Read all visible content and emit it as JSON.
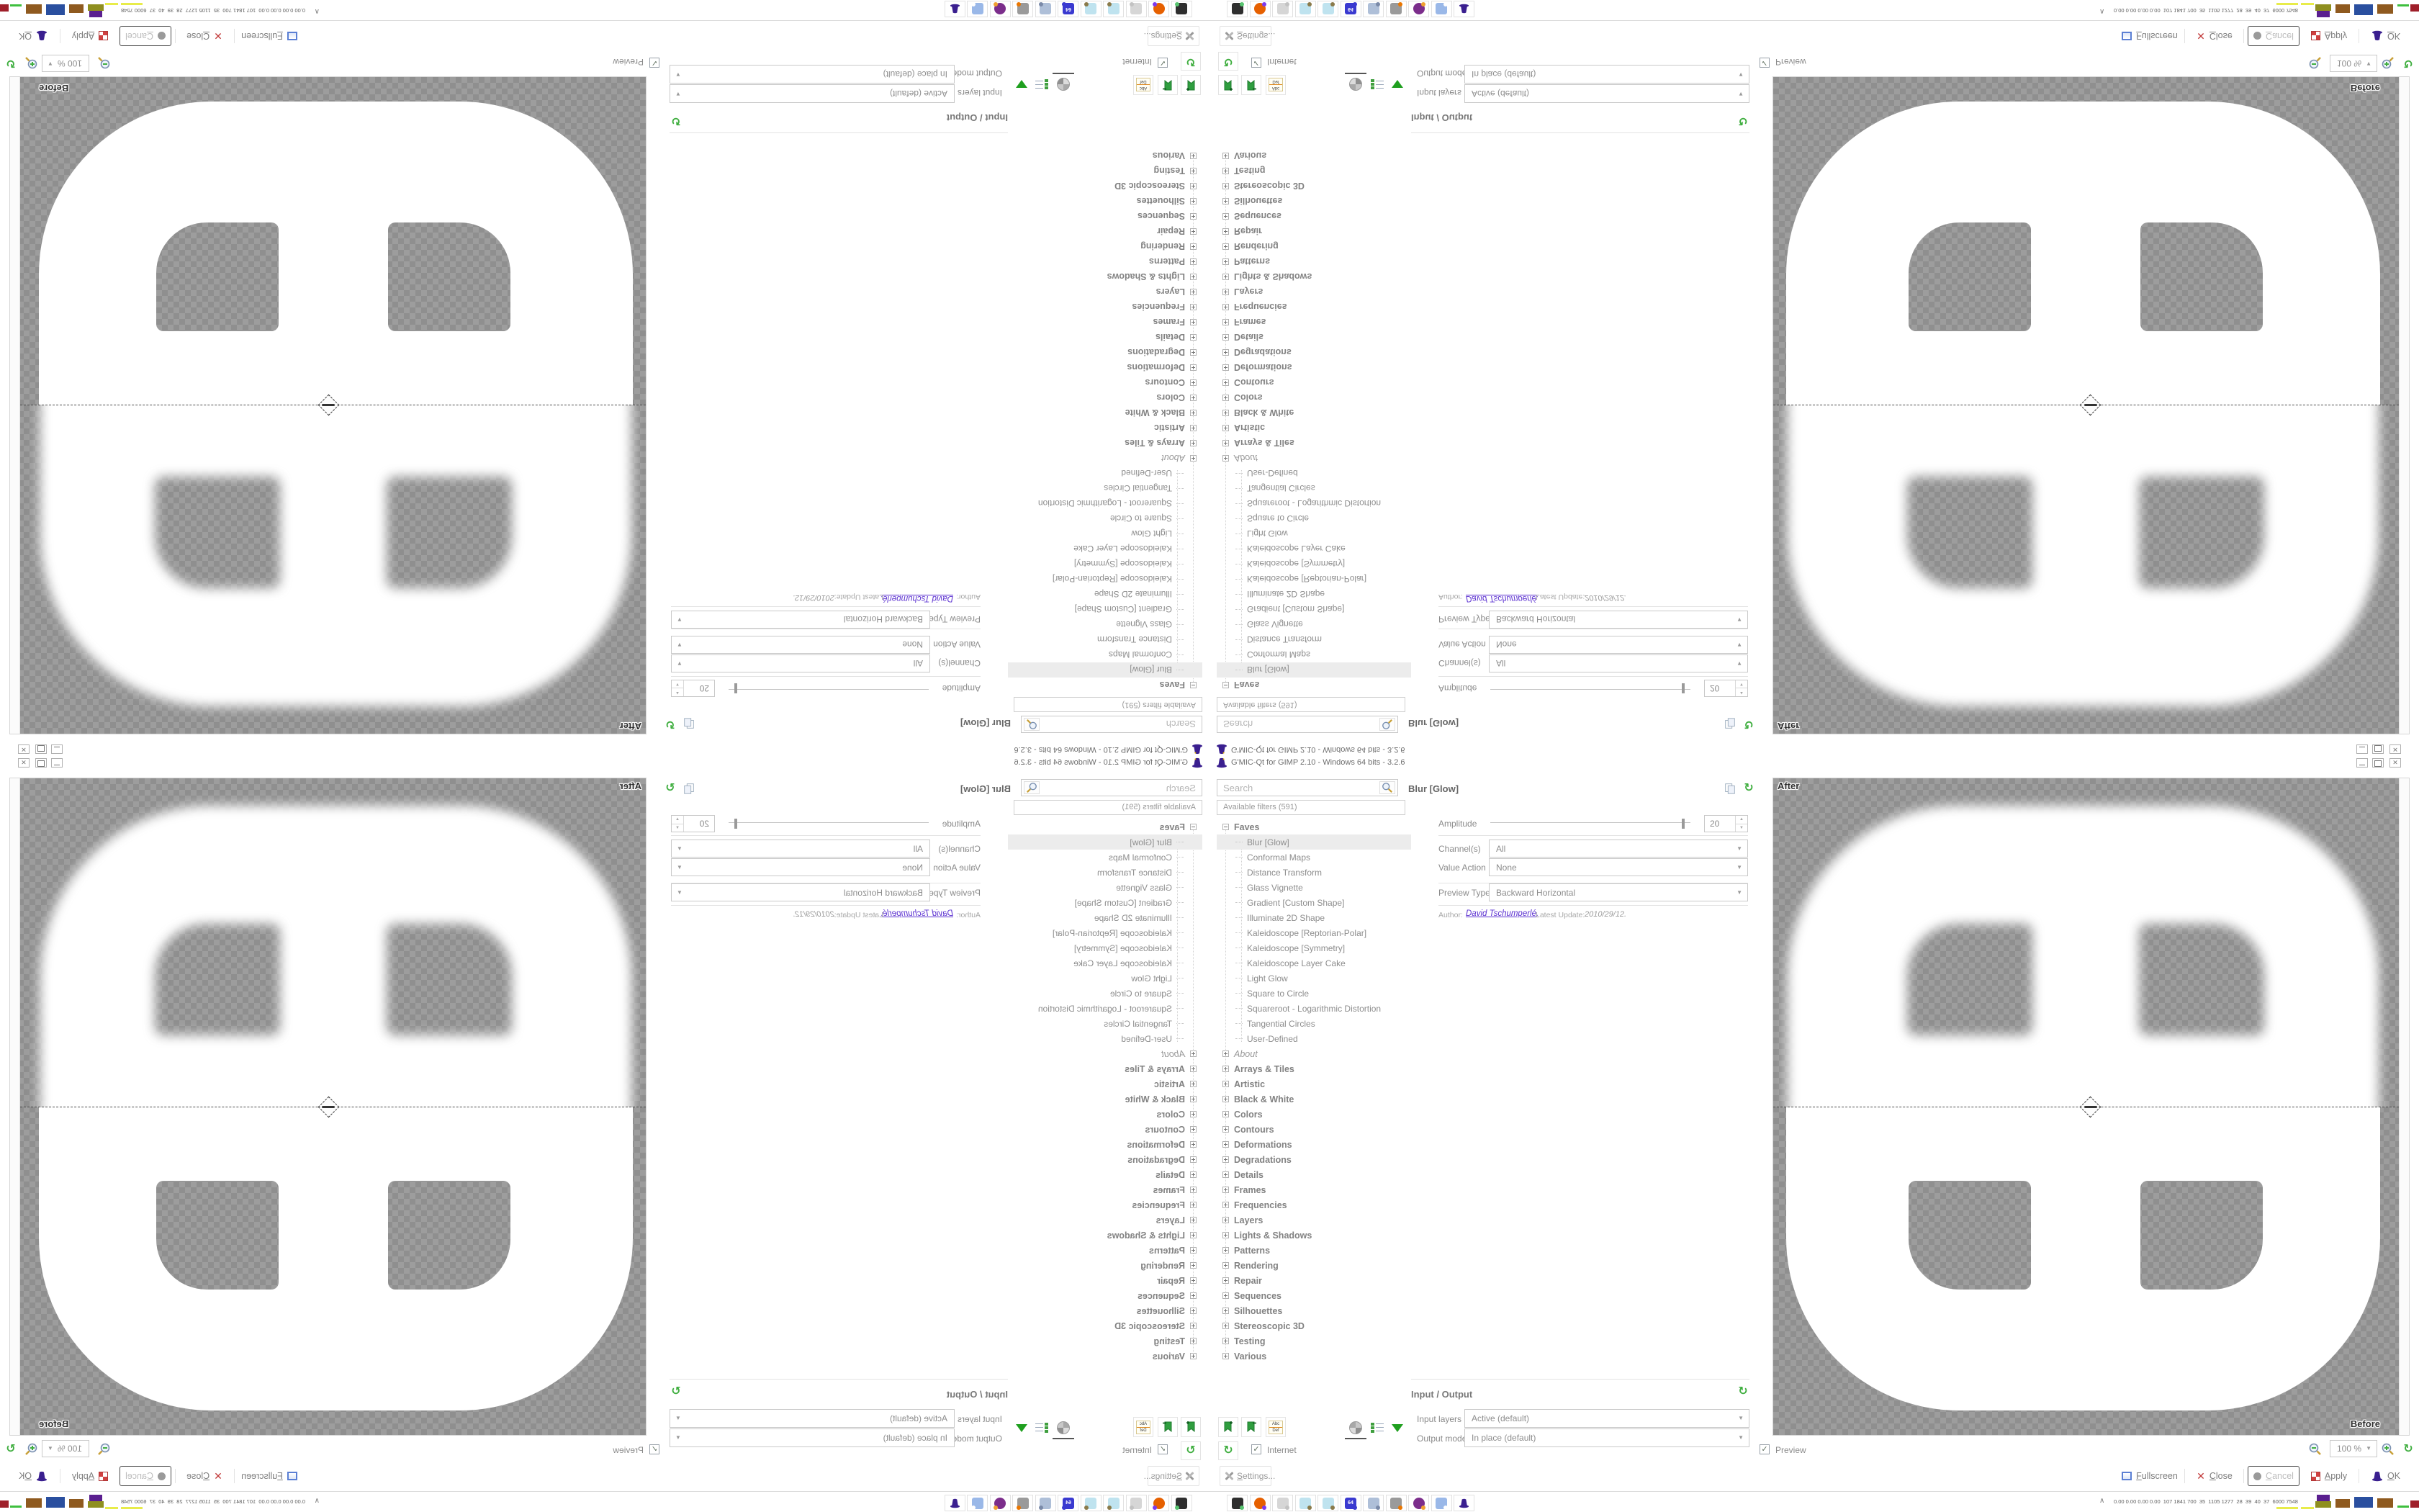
{
  "window": {
    "title": "G'MIC-Qt for GIMP 2.10 - Windows 64 bits - 3.2.6"
  },
  "search": {
    "placeholder": "Search"
  },
  "filters": {
    "header": "Available filters (591)",
    "faves_group": "Faves",
    "selected": "Blur [Glow]",
    "faves": [
      "Blur [Glow]",
      "Conformal Maps",
      "Distance Transform",
      "Glass Vignette",
      "Gradient [Custom Shape]",
      "Illuminate 2D Shape",
      "Kaleidoscope [Reptorian-Polar]",
      "Kaleidoscope [Symmetry]",
      "Kaleidoscope Layer Cake",
      "Light Glow",
      "Square to Circle",
      "Squareroot - Logarithmic Distortion",
      "Tangential Circles",
      "User-Defined"
    ],
    "categories": [
      "About",
      "Arrays & Tiles",
      "Artistic",
      "Black & White",
      "Colors",
      "Contours",
      "Deformations",
      "Degradations",
      "Details",
      "Frames",
      "Frequencies",
      "Layers",
      "Lights & Shadows",
      "Patterns",
      "Rendering",
      "Repair",
      "Sequences",
      "Silhouettes",
      "Stereoscopic 3D",
      "Testing",
      "Various"
    ]
  },
  "params": {
    "title": "Blur [Glow]",
    "amplitude_label": "Amplitude",
    "amplitude_value": "20",
    "channels_label": "Channel(s)",
    "channels_value": "All",
    "value_action_label": "Value Action",
    "value_action_value": "None",
    "preview_type_label": "Preview Type",
    "preview_type_value": "Backward Horizontal",
    "author_label": "Author:",
    "author_name": "David Tschumperlé.",
    "update_label": "Latest Update:",
    "update_value": "2010/29/12."
  },
  "io": {
    "header": "Input / Output",
    "input_layers_label": "Input layers",
    "input_layers_value": "Active (default)",
    "output_mode_label": "Output mode",
    "output_mode_value": "In place (default)"
  },
  "preview_pane": {
    "after_label": "After",
    "before_label": "Before",
    "zoom_value": "100 %"
  },
  "bottom_bar": {
    "internet_label": "Internet",
    "preview_label": "Preview",
    "settings_label": "Settings...",
    "fullscreen_label": "Fullscreen",
    "close_label": "Close",
    "cancel_label": "Cancel",
    "apply_label": "Apply",
    "ok_label": "OK"
  },
  "taskbar": {
    "expand_glyph": "∧",
    "stats": "0.00 0.00 0.00 0.00  107 1841 700  35  1105 1277  28  39  40  37  6000 7548",
    "icons": [
      {
        "name": "dark-app-icon",
        "color": "#2e2e2e",
        "accent": "#58c470"
      },
      {
        "name": "firefox-icon",
        "color": "#e66000",
        "accent": "#7c3aed"
      },
      {
        "name": "printer-muted-icon",
        "color": "#d6d6d6",
        "accent": "#c2c2c2"
      },
      {
        "name": "notepad-icon",
        "color": "#bfe3ef",
        "accent": "#8a7a4a"
      },
      {
        "name": "notepad2-icon",
        "color": "#bfe3ef",
        "accent": "#8a7a4a"
      },
      {
        "name": "floppy-64-icon",
        "color": "#3a3ad0",
        "accent": "#3a3ad0",
        "glyph": "64"
      },
      {
        "name": "scroll-icon",
        "color": "#aebfd8",
        "accent": "#7a8aa8"
      },
      {
        "name": "blender-icon",
        "color": "#9a9a9a",
        "accent": "#ea7600"
      },
      {
        "name": "owl-icon",
        "color": "#7b2d8b",
        "accent": "#f0a030"
      },
      {
        "name": "calculator-icon",
        "color": "#9ab8e8",
        "accent": "#ffffff"
      },
      {
        "name": "gmic-hat-icon",
        "color": "#3a1f8f",
        "accent": "#3a1f8f",
        "hat": true
      }
    ]
  },
  "colors": {
    "checker_light": "#9d9d9d",
    "checker_dark": "#8f8f8f",
    "gmic_purple": "#3a1f8f",
    "link_purple": "#5a2fd0",
    "fave_green": "#2f9e3f"
  }
}
